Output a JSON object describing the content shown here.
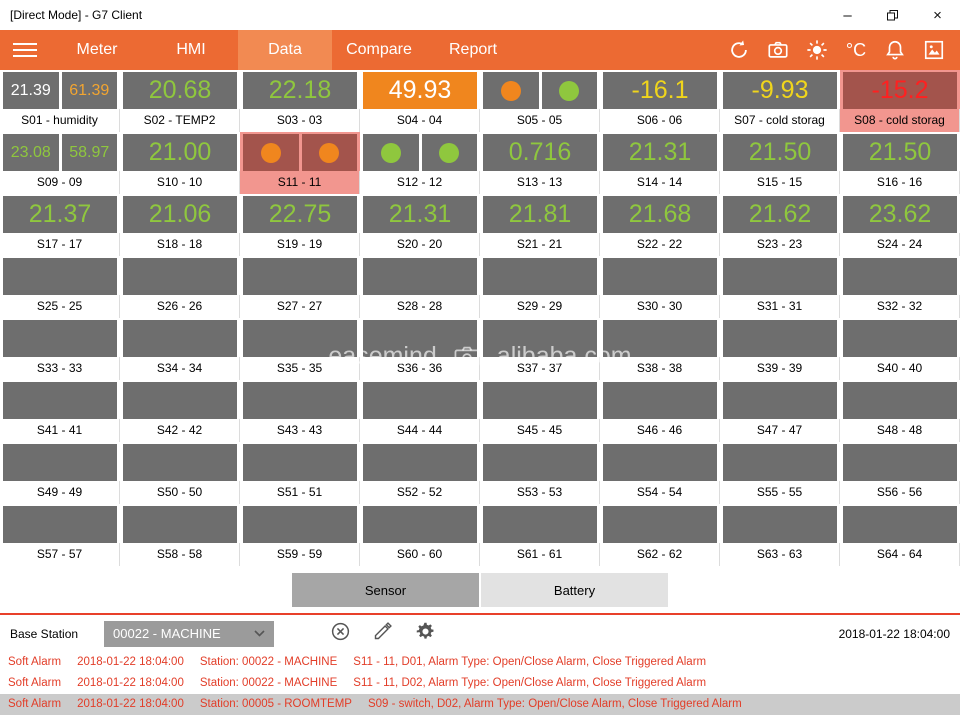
{
  "window": {
    "title": "[Direct Mode] - G7 Client",
    "minimize": "–",
    "close": "×"
  },
  "nav": {
    "tabs": [
      {
        "label": "Meter",
        "active": false
      },
      {
        "label": "HMI",
        "active": false
      },
      {
        "label": "Data",
        "active": true
      },
      {
        "label": "Compare",
        "active": false
      },
      {
        "label": "Report",
        "active": false
      }
    ],
    "celsius": "°C"
  },
  "watermark": {
    "left": "easemind",
    "right": "alibaba.com"
  },
  "grid": {
    "tiles": [
      {
        "label": "S01 - humidity",
        "values": [
          {
            "text": "21.39",
            "color": "white"
          },
          {
            "text": "61.39",
            "color": "amber"
          }
        ]
      },
      {
        "label": "S02 - TEMP2",
        "values": [
          {
            "text": "20.68",
            "color": "green"
          }
        ]
      },
      {
        "label": "S03 - 03",
        "values": [
          {
            "text": "22.18",
            "color": "green"
          }
        ]
      },
      {
        "label": "S04 - 04",
        "values": [
          {
            "text": "49.93",
            "color": "white",
            "bg": "orange"
          }
        ]
      },
      {
        "label": "S05 - 05",
        "values": [
          {
            "dot": "orange"
          },
          {
            "dot": "green"
          }
        ]
      },
      {
        "label": "S06 - 06",
        "values": [
          {
            "text": "-16.1",
            "color": "yellow"
          }
        ]
      },
      {
        "label": "S07 - cold storag",
        "values": [
          {
            "text": "-9.93",
            "color": "yellow"
          }
        ]
      },
      {
        "label": "S08 - cold storag",
        "alarm": true,
        "values": [
          {
            "text": "-15.2",
            "color": "red",
            "bg": "alarm"
          }
        ]
      },
      {
        "label": "S09 - 09",
        "values": [
          {
            "text": "23.08",
            "color": "green"
          },
          {
            "text": "58.97",
            "color": "green"
          }
        ]
      },
      {
        "label": "S10 - 10",
        "values": [
          {
            "text": "21.00",
            "color": "green"
          }
        ]
      },
      {
        "label": "S11 - 11",
        "alarm": true,
        "values": [
          {
            "dot": "orange",
            "bg": "alarm"
          },
          {
            "dot": "orange",
            "bg": "alarm"
          }
        ]
      },
      {
        "label": "S12 - 12",
        "values": [
          {
            "dot": "green"
          },
          {
            "dot": "green"
          }
        ]
      },
      {
        "label": "S13 - 13",
        "values": [
          {
            "text": "0.716",
            "color": "green"
          }
        ]
      },
      {
        "label": "S14 - 14",
        "values": [
          {
            "text": "21.31",
            "color": "green"
          }
        ]
      },
      {
        "label": "S15 - 15",
        "values": [
          {
            "text": "21.50",
            "color": "green"
          }
        ]
      },
      {
        "label": "S16 - 16",
        "values": [
          {
            "text": "21.50",
            "color": "green"
          }
        ]
      },
      {
        "label": "S17 - 17",
        "values": [
          {
            "text": "21.37",
            "color": "green"
          }
        ]
      },
      {
        "label": "S18 - 18",
        "values": [
          {
            "text": "21.06",
            "color": "green"
          }
        ]
      },
      {
        "label": "S19 - 19",
        "values": [
          {
            "text": "22.75",
            "color": "green"
          }
        ]
      },
      {
        "label": "S20 - 20",
        "values": [
          {
            "text": "21.31",
            "color": "green"
          }
        ]
      },
      {
        "label": "S21 - 21",
        "values": [
          {
            "text": "21.81",
            "color": "green"
          }
        ]
      },
      {
        "label": "S22 - 22",
        "values": [
          {
            "text": "21.68",
            "color": "green"
          }
        ]
      },
      {
        "label": "S23 - 23",
        "values": [
          {
            "text": "21.62",
            "color": "green"
          }
        ]
      },
      {
        "label": "S24 - 24",
        "values": [
          {
            "text": "23.62",
            "color": "green"
          }
        ]
      },
      {
        "label": "S25 - 25",
        "values": [
          {}
        ]
      },
      {
        "label": "S26 - 26",
        "values": [
          {}
        ]
      },
      {
        "label": "S27 - 27",
        "values": [
          {}
        ]
      },
      {
        "label": "S28 - 28",
        "values": [
          {}
        ]
      },
      {
        "label": "S29 - 29",
        "values": [
          {}
        ]
      },
      {
        "label": "S30 - 30",
        "values": [
          {}
        ]
      },
      {
        "label": "S31 - 31",
        "values": [
          {}
        ]
      },
      {
        "label": "S32 - 32",
        "values": [
          {}
        ]
      },
      {
        "label": "S33 - 33",
        "values": [
          {}
        ]
      },
      {
        "label": "S34 - 34",
        "values": [
          {}
        ]
      },
      {
        "label": "S35 - 35",
        "values": [
          {}
        ]
      },
      {
        "label": "S36 - 36",
        "values": [
          {}
        ]
      },
      {
        "label": "S37 - 37",
        "values": [
          {}
        ]
      },
      {
        "label": "S38 - 38",
        "values": [
          {}
        ]
      },
      {
        "label": "S39 - 39",
        "values": [
          {}
        ]
      },
      {
        "label": "S40 - 40",
        "values": [
          {}
        ]
      },
      {
        "label": "S41 - 41",
        "values": [
          {}
        ]
      },
      {
        "label": "S42 - 42",
        "values": [
          {}
        ]
      },
      {
        "label": "S43 - 43",
        "values": [
          {}
        ]
      },
      {
        "label": "S44 - 44",
        "values": [
          {}
        ]
      },
      {
        "label": "S45 - 45",
        "values": [
          {}
        ]
      },
      {
        "label": "S46 - 46",
        "values": [
          {}
        ]
      },
      {
        "label": "S47 - 47",
        "values": [
          {}
        ]
      },
      {
        "label": "S48 - 48",
        "values": [
          {}
        ]
      },
      {
        "label": "S49 - 49",
        "values": [
          {}
        ]
      },
      {
        "label": "S50 - 50",
        "values": [
          {}
        ]
      },
      {
        "label": "S51 - 51",
        "values": [
          {}
        ]
      },
      {
        "label": "S52 - 52",
        "values": [
          {}
        ]
      },
      {
        "label": "S53 - 53",
        "values": [
          {}
        ]
      },
      {
        "label": "S54 - 54",
        "values": [
          {}
        ]
      },
      {
        "label": "S55 - 55",
        "values": [
          {}
        ]
      },
      {
        "label": "S56 - 56",
        "values": [
          {}
        ]
      },
      {
        "label": "S57 - 57",
        "values": [
          {}
        ]
      },
      {
        "label": "S58 - 58",
        "values": [
          {}
        ]
      },
      {
        "label": "S59 - 59",
        "values": [
          {}
        ]
      },
      {
        "label": "S60 - 60",
        "values": [
          {}
        ]
      },
      {
        "label": "S61 - 61",
        "values": [
          {}
        ]
      },
      {
        "label": "S62 - 62",
        "values": [
          {}
        ]
      },
      {
        "label": "S63 - 63",
        "values": [
          {}
        ]
      },
      {
        "label": "S64 - 64",
        "values": [
          {}
        ]
      }
    ]
  },
  "footer_tabs": {
    "sensor": "Sensor",
    "battery": "Battery"
  },
  "base_station": {
    "label": "Base Station",
    "selected": "00022 - MACHINE",
    "timestamp": "2018-01-22 18:04:00"
  },
  "alarms": [
    {
      "type": "Soft Alarm",
      "time": "2018-01-22 18:04:00",
      "station": "Station: 00022 - MACHINE",
      "detail": "S11 - 11, D01, Alarm Type: Open/Close Alarm, Close Triggered Alarm",
      "highlight": false
    },
    {
      "type": "Soft Alarm",
      "time": "2018-01-22 18:04:00",
      "station": "Station: 00022 - MACHINE",
      "detail": "S11 - 11, D02, Alarm Type: Open/Close Alarm, Close Triggered Alarm",
      "highlight": false
    },
    {
      "type": "Soft Alarm",
      "time": "2018-01-22 18:04:00",
      "station": "Station: 00005 - ROOMTEMP",
      "detail": "S09 - switch, D02, Alarm Type: Open/Close Alarm, Close Triggered Alarm",
      "highlight": true
    }
  ],
  "colors": {
    "nav_orange": "#ec6a33",
    "nav_active": "#f28a52",
    "tile_gray": "#6e6e6e",
    "value_green": "#8fc73e",
    "value_yellow": "#f0d51c",
    "value_amber": "#f2a531",
    "alarm_pink": "#f2968f",
    "alarm_box": "#a3544c",
    "alarm_red_text": "#ff2020",
    "log_red": "#e23d28"
  }
}
